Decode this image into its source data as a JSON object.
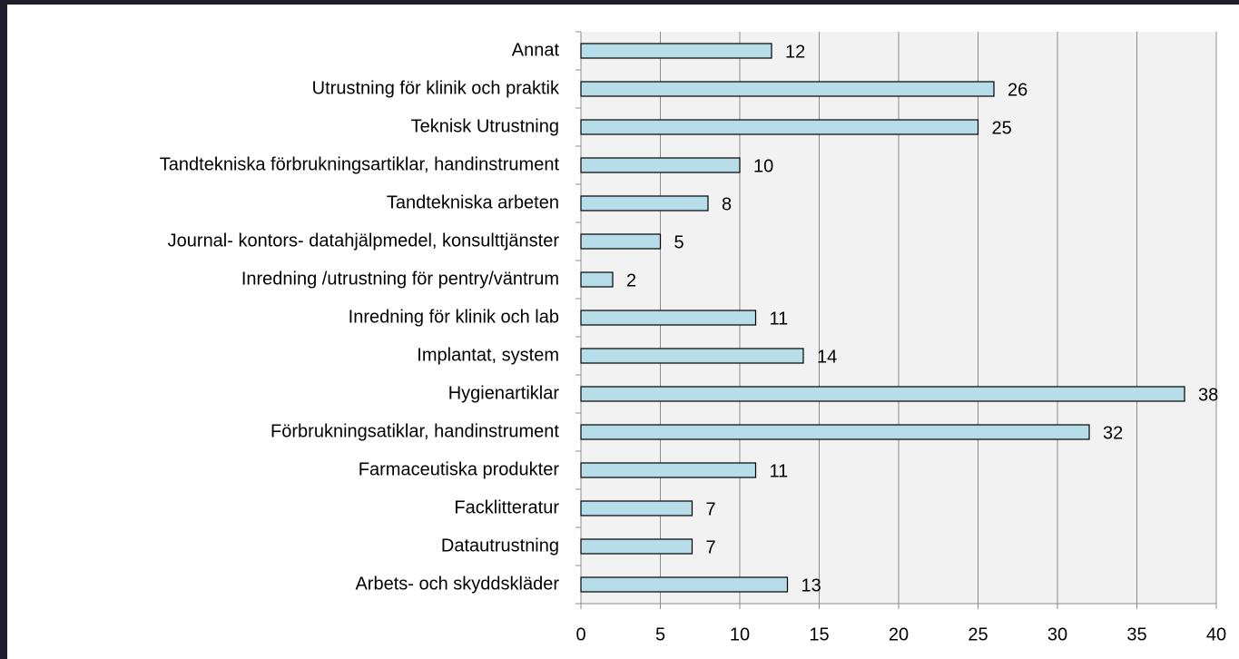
{
  "chart_data": {
    "type": "bar",
    "orientation": "horizontal",
    "categories": [
      "Annat",
      "Utrustning för klinik och praktik",
      "Teknisk Utrustning",
      "Tandtekniska förbrukningsartiklar, handinstrument",
      "Tandtekniska arbeten",
      "Journal- kontors- datahjälpmedel, konsulttjänster",
      "Inredning /utrustning för pentry/väntrum",
      "Inredning för klinik och lab",
      "Implantat, system",
      "Hygienartiklar",
      "Förbrukningsatiklar, handinstrument",
      "Farmaceutiska produkter",
      "Facklitteratur",
      "Datautrustning",
      "Arbets- och skyddskläder"
    ],
    "values": [
      12,
      26,
      25,
      10,
      8,
      5,
      2,
      11,
      14,
      38,
      32,
      11,
      7,
      7,
      13
    ],
    "color": "#b7dde8",
    "xlim": [
      0,
      40
    ],
    "xticks": [
      0,
      5,
      10,
      15,
      20,
      25,
      30,
      35,
      40
    ],
    "grid": true
  }
}
